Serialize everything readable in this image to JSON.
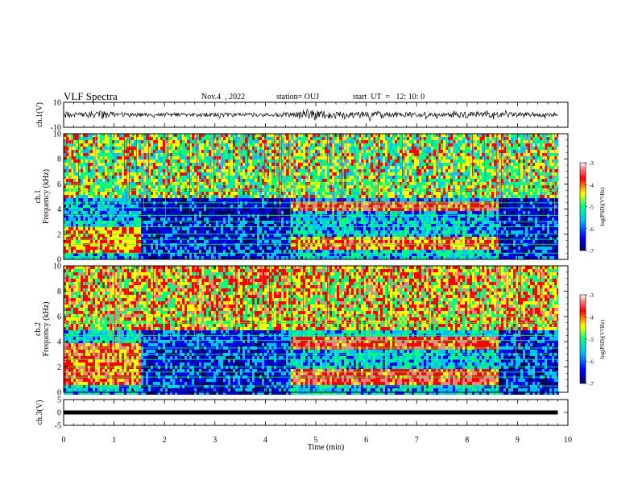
{
  "header": {
    "title": "VLF Spectra",
    "date": "Nov.4  , 2022",
    "station": "station= OUJ",
    "start_ut": "start  UT  =   12: 10: 0"
  },
  "colors": {
    "scale": [
      "#000060",
      "#0000ff",
      "#00c0ff",
      "#00ff80",
      "#ffff00",
      "#ff0000",
      "#ff8080",
      "#ffffff"
    ],
    "frame": "#000000",
    "gridline": "#20ff60"
  },
  "chart_data": [
    {
      "type": "line",
      "panel": "ch1-waveform",
      "ylabel": "ch.1(V)",
      "ylim": [
        -10,
        10
      ],
      "yticks": [
        "10",
        "-10"
      ],
      "xlim": [
        0,
        10
      ],
      "description_series": "amplitude",
      "x": [
        0,
        0.3,
        0.6,
        0.8,
        1.0,
        1.5,
        2.0,
        2.5,
        3.0,
        3.5,
        4.0,
        4.5,
        4.8,
        5.0,
        5.2,
        5.8,
        6.0,
        6.5,
        7.0,
        7.5,
        8.0,
        8.5,
        9.0,
        9.5,
        9.8
      ],
      "y": [
        2.5,
        2.0,
        2.5,
        4.0,
        2.0,
        1.5,
        1.5,
        1.5,
        1.8,
        1.5,
        1.5,
        2.0,
        4.5,
        4.0,
        3.0,
        2.5,
        3.5,
        2.0,
        2.0,
        2.0,
        2.5,
        2.5,
        2.0,
        2.0,
        1.5
      ]
    },
    {
      "type": "heatmap",
      "panel": "ch1-spectrogram",
      "ylabel": "ch.1\nFrequency (kHz)",
      "ylim": [
        0,
        10
      ],
      "yticks": [
        "0",
        "2",
        "4",
        "6",
        "8",
        "10"
      ],
      "xlim": [
        0,
        10
      ],
      "colorbar": {
        "label": "log(PSD)(V²/Hz)",
        "ticks": [
          "-3",
          "-4",
          "-5",
          "-6",
          "-7"
        ],
        "range": [
          -7,
          -3
        ]
      },
      "bands_khz": [
        0.5,
        1.2,
        1.6,
        2.0,
        2.6,
        3.0,
        3.5,
        4.1,
        4.5,
        5.5,
        6.0
      ],
      "emission_segments": [
        {
          "x": [
            0,
            1.5
          ],
          "f_khz": [
            0.6,
            2.6
          ],
          "level": -4.5
        },
        {
          "x": [
            4.5,
            8.6
          ],
          "f_khz": [
            4.1,
            4.7
          ],
          "level": -4.0
        },
        {
          "x": [
            4.5,
            8.6
          ],
          "f_khz": [
            0.8,
            2.0
          ],
          "level": -4.3
        }
      ]
    },
    {
      "type": "heatmap",
      "panel": "ch2-spectrogram",
      "ylabel": "ch.2\nFrequency (kHz)",
      "ylim": [
        0,
        10
      ],
      "yticks": [
        "0",
        "2",
        "4",
        "6",
        "8",
        "10"
      ],
      "xlim": [
        0,
        10
      ],
      "colorbar": {
        "label": "log(PSD)(V²/Hz)",
        "ticks": [
          "-3",
          "-4",
          "-5",
          "-6",
          "-7"
        ],
        "range": [
          -7,
          -3
        ]
      },
      "bands_khz": [
        0.5,
        1.2,
        1.6,
        2.0,
        2.6,
        3.0,
        3.5,
        4.1,
        4.5,
        5.5,
        6.0
      ],
      "emission_segments": [
        {
          "x": [
            0,
            1.5
          ],
          "f_khz": [
            0.6,
            4.0
          ],
          "level": -4.2
        },
        {
          "x": [
            4.5,
            8.6
          ],
          "f_khz": [
            3.6,
            4.5
          ],
          "level": -4.0
        },
        {
          "x": [
            4.5,
            8.6
          ],
          "f_khz": [
            0.6,
            2.0
          ],
          "level": -4.0
        }
      ]
    },
    {
      "type": "line",
      "panel": "ch3-waveform",
      "ylabel": "ch.3(V)",
      "ylim": [
        -5,
        5
      ],
      "yticks": [
        "5",
        "0",
        "-5"
      ],
      "xlim": [
        0,
        10
      ],
      "xlabel": "Time  (min)",
      "xticks": [
        "0",
        "1",
        "2",
        "3",
        "4",
        "5",
        "6",
        "7",
        "8",
        "9",
        "10"
      ],
      "x": [
        0,
        9.8
      ],
      "y": [
        0,
        0
      ]
    }
  ]
}
